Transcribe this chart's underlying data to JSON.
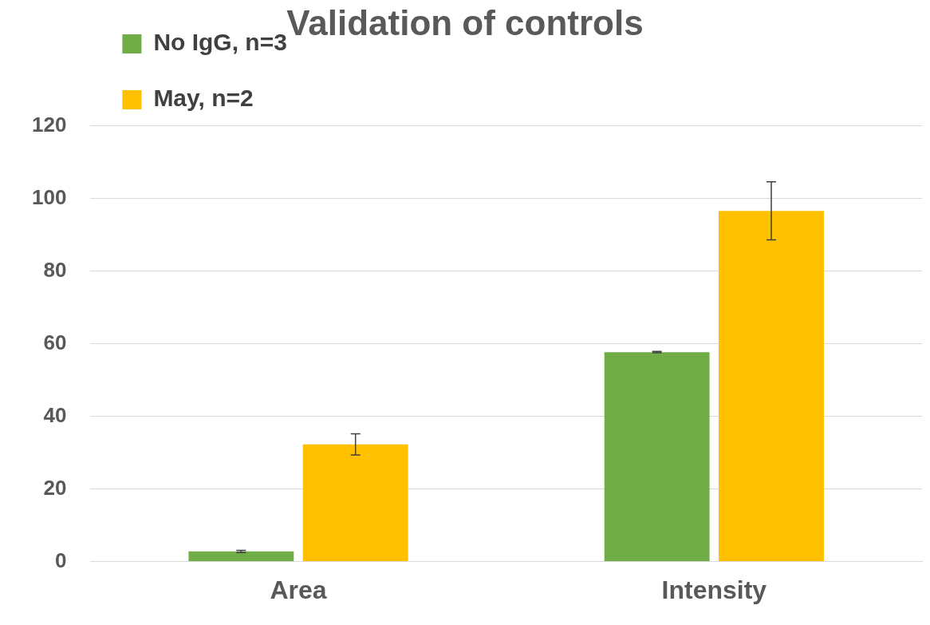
{
  "chart_data": {
    "type": "bar",
    "title": "Validation of controls",
    "categories": [
      "Area",
      "Intensity"
    ],
    "series": [
      {
        "name": "No IgG, n=3",
        "color": "#70ad47",
        "values": [
          2.8,
          57.7
        ],
        "errors": [
          0.3,
          0.2
        ]
      },
      {
        "name": "May, n=2",
        "color": "#ffc000",
        "values": [
          32.3,
          96.6
        ],
        "errors": [
          2.9,
          8
        ]
      }
    ],
    "ylim": [
      0,
      120
    ],
    "yticks": [
      0,
      20,
      40,
      60,
      80,
      100,
      120
    ],
    "grid": "y",
    "legend": "top left"
  }
}
